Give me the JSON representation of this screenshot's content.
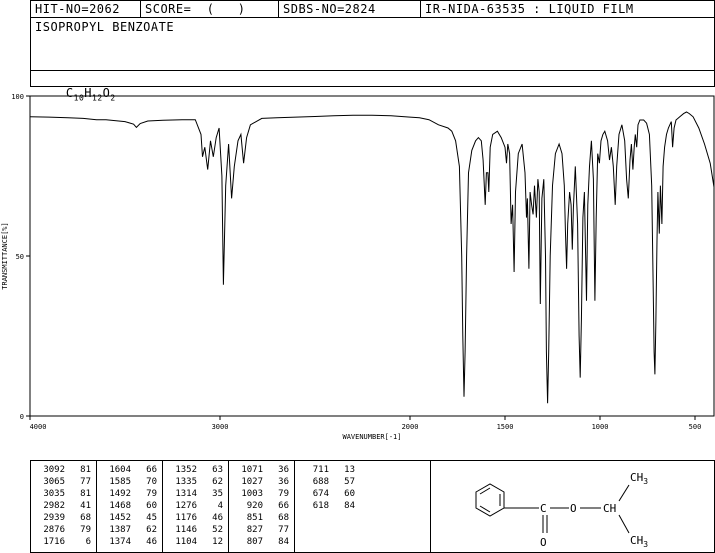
{
  "header": {
    "hit_no": "HIT-NO=2062",
    "score": "SCORE=  (   )",
    "sdbs_no": "SDBS-NO=2824",
    "ir_info": "IR-NIDA-63535 : LIQUID FILM"
  },
  "compound": {
    "name": "ISOPROPYL BENZOATE",
    "formula_parts": [
      "C",
      "10",
      "H",
      "12",
      "O",
      "2"
    ]
  },
  "chart_data": {
    "type": "line",
    "xlabel": "WAVENUMBER[-1]",
    "ylabel": "TRANSMITTANCE[%]",
    "xlim": [
      4000,
      400
    ],
    "ylim": [
      0,
      100
    ],
    "x_ticks": [
      4000,
      3000,
      2000,
      1500,
      1000,
      500
    ],
    "y_ticks": [
      0,
      50,
      100
    ],
    "series": [
      {
        "points": [
          [
            4000,
            93.5
          ],
          [
            3900,
            93.4
          ],
          [
            3800,
            93.2
          ],
          [
            3720,
            93.0
          ],
          [
            3650,
            92.6
          ],
          [
            3600,
            92.6
          ],
          [
            3500,
            92.0
          ],
          [
            3455,
            91.2
          ],
          [
            3440,
            90.2
          ],
          [
            3420,
            91.4
          ],
          [
            3380,
            92.2
          ],
          [
            3300,
            92.4
          ],
          [
            3200,
            92.6
          ],
          [
            3130,
            92.6
          ],
          [
            3100,
            88.0
          ],
          [
            3092,
            81
          ],
          [
            3080,
            84
          ],
          [
            3065,
            77
          ],
          [
            3050,
            86
          ],
          [
            3035,
            81
          ],
          [
            3020,
            87
          ],
          [
            3005,
            90
          ],
          [
            2990,
            75
          ],
          [
            2982,
            41
          ],
          [
            2970,
            72
          ],
          [
            2955,
            85
          ],
          [
            2939,
            68
          ],
          [
            2925,
            78
          ],
          [
            2905,
            86
          ],
          [
            2890,
            88
          ],
          [
            2876,
            79
          ],
          [
            2860,
            87
          ],
          [
            2840,
            91
          ],
          [
            2780,
            93.0
          ],
          [
            2700,
            93.2
          ],
          [
            2600,
            93.4
          ],
          [
            2500,
            93.6
          ],
          [
            2400,
            93.8
          ],
          [
            2300,
            94.0
          ],
          [
            2200,
            94.0
          ],
          [
            2100,
            93.8
          ],
          [
            2000,
            93.4
          ],
          [
            1950,
            93.2
          ],
          [
            1900,
            92.6
          ],
          [
            1850,
            91.0
          ],
          [
            1800,
            90.0
          ],
          [
            1780,
            89.0
          ],
          [
            1760,
            86.0
          ],
          [
            1740,
            78.0
          ],
          [
            1728,
            50.0
          ],
          [
            1722,
            25.0
          ],
          [
            1716,
            6
          ],
          [
            1710,
            20.0
          ],
          [
            1702,
            50.0
          ],
          [
            1692,
            76.0
          ],
          [
            1675,
            83.0
          ],
          [
            1655,
            86.0
          ],
          [
            1640,
            87.0
          ],
          [
            1625,
            86.0
          ],
          [
            1615,
            80.0
          ],
          [
            1604,
            66
          ],
          [
            1598,
            76
          ],
          [
            1590,
            76
          ],
          [
            1585,
            70
          ],
          [
            1578,
            84
          ],
          [
            1565,
            88
          ],
          [
            1540,
            89.0
          ],
          [
            1520,
            87.0
          ],
          [
            1500,
            84
          ],
          [
            1492,
            79
          ],
          [
            1485,
            85
          ],
          [
            1476,
            82
          ],
          [
            1468,
            60
          ],
          [
            1460,
            66
          ],
          [
            1452,
            45
          ],
          [
            1445,
            70
          ],
          [
            1430,
            82
          ],
          [
            1410,
            85
          ],
          [
            1395,
            76
          ],
          [
            1387,
            62
          ],
          [
            1382,
            68
          ],
          [
            1374,
            46
          ],
          [
            1368,
            70
          ],
          [
            1360,
            66
          ],
          [
            1352,
            63
          ],
          [
            1345,
            72
          ],
          [
            1335,
            62
          ],
          [
            1327,
            74
          ],
          [
            1320,
            70
          ],
          [
            1314,
            35
          ],
          [
            1306,
            68
          ],
          [
            1296,
            74
          ],
          [
            1287,
            50
          ],
          [
            1282,
            20
          ],
          [
            1276,
            4
          ],
          [
            1270,
            20
          ],
          [
            1262,
            50
          ],
          [
            1250,
            72
          ],
          [
            1235,
            82
          ],
          [
            1215,
            85
          ],
          [
            1200,
            82
          ],
          [
            1188,
            72
          ],
          [
            1182,
            58
          ],
          [
            1176,
            46
          ],
          [
            1170,
            60
          ],
          [
            1160,
            70
          ],
          [
            1152,
            66
          ],
          [
            1146,
            52
          ],
          [
            1140,
            65
          ],
          [
            1130,
            78
          ],
          [
            1118,
            60
          ],
          [
            1110,
            25
          ],
          [
            1104,
            12
          ],
          [
            1098,
            30
          ],
          [
            1090,
            62
          ],
          [
            1082,
            70
          ],
          [
            1071,
            36
          ],
          [
            1064,
            66
          ],
          [
            1055,
            78
          ],
          [
            1045,
            86
          ],
          [
            1035,
            74
          ],
          [
            1027,
            36
          ],
          [
            1020,
            62
          ],
          [
            1012,
            82
          ],
          [
            1003,
            79
          ],
          [
            995,
            86
          ],
          [
            985,
            88
          ],
          [
            975,
            89
          ],
          [
            960,
            86
          ],
          [
            950,
            80
          ],
          [
            940,
            84
          ],
          [
            930,
            78
          ],
          [
            920,
            66
          ],
          [
            912,
            78
          ],
          [
            900,
            88
          ],
          [
            885,
            91
          ],
          [
            870,
            86
          ],
          [
            860,
            74
          ],
          [
            851,
            68
          ],
          [
            842,
            80
          ],
          [
            835,
            85
          ],
          [
            827,
            77
          ],
          [
            820,
            84
          ],
          [
            814,
            88
          ],
          [
            807,
            84
          ],
          [
            800,
            91
          ],
          [
            790,
            92.5
          ],
          [
            770,
            92.5
          ],
          [
            755,
            91.5
          ],
          [
            740,
            88
          ],
          [
            728,
            72
          ],
          [
            720,
            40
          ],
          [
            715,
            20
          ],
          [
            711,
            13
          ],
          [
            706,
            30
          ],
          [
            700,
            55
          ],
          [
            695,
            70
          ],
          [
            688,
            57
          ],
          [
            682,
            72
          ],
          [
            674,
            60
          ],
          [
            668,
            78
          ],
          [
            660,
            84
          ],
          [
            650,
            88
          ],
          [
            640,
            90
          ],
          [
            625,
            92.0
          ],
          [
            618,
            84
          ],
          [
            610,
            90
          ],
          [
            600,
            92.5
          ],
          [
            580,
            93.5
          ],
          [
            560,
            94.5
          ],
          [
            545,
            95
          ],
          [
            530,
            94.5
          ],
          [
            510,
            93.5
          ],
          [
            480,
            90
          ],
          [
            450,
            85
          ],
          [
            420,
            79
          ],
          [
            400,
            71.5
          ]
        ]
      }
    ]
  },
  "peak_table": {
    "columns": [
      [
        [
          "3092",
          "81"
        ],
        [
          "3065",
          "77"
        ],
        [
          "3035",
          "81"
        ],
        [
          "2982",
          "41"
        ],
        [
          "2939",
          "68"
        ],
        [
          "2876",
          "79"
        ],
        [
          "1716",
          "6"
        ]
      ],
      [
        [
          "1604",
          "66"
        ],
        [
          "1585",
          "70"
        ],
        [
          "1492",
          "79"
        ],
        [
          "1468",
          "60"
        ],
        [
          "1452",
          "45"
        ],
        [
          "1387",
          "62"
        ],
        [
          "1374",
          "46"
        ]
      ],
      [
        [
          "1352",
          "63"
        ],
        [
          "1335",
          "62"
        ],
        [
          "1314",
          "35"
        ],
        [
          "1276",
          "4"
        ],
        [
          "1176",
          "46"
        ],
        [
          "1146",
          "52"
        ],
        [
          "1104",
          "12"
        ]
      ],
      [
        [
          "1071",
          "36"
        ],
        [
          "1027",
          "36"
        ],
        [
          "1003",
          "79"
        ],
        [
          "920",
          "66"
        ],
        [
          "851",
          "68"
        ],
        [
          "827",
          "77"
        ],
        [
          "807",
          "84"
        ]
      ],
      [
        [
          "711",
          "13"
        ],
        [
          "688",
          "57"
        ],
        [
          "674",
          "60"
        ],
        [
          "618",
          "84"
        ]
      ]
    ]
  },
  "structure": {
    "carbonyl_c": "C",
    "ester_o": "O",
    "ch": "CH",
    "ch3_top": "CH",
    "ch3_bottom": "CH",
    "sub3": "3",
    "carbonyl_o": "O"
  }
}
